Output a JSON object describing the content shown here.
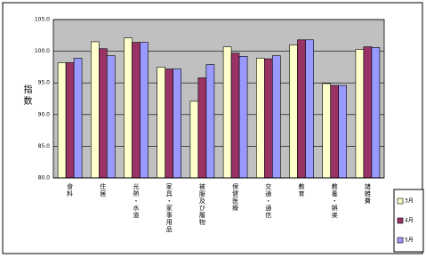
{
  "chart_data": {
    "type": "bar",
    "y_label": "指数",
    "categories": [
      "食料",
      "住居",
      "光熱・水道",
      "家具・家事用品",
      "被服及び履物",
      "保健医療",
      "交通・通信",
      "教育",
      "教養・娯楽",
      "諸雑費"
    ],
    "series": [
      {
        "name": "3月",
        "color": "#ffffcc",
        "values": [
          98.2,
          101.5,
          102.1,
          97.5,
          92.1,
          100.7,
          98.9,
          101.0,
          94.9,
          100.3
        ]
      },
      {
        "name": "4月",
        "color": "#993366",
        "values": [
          98.2,
          100.4,
          101.4,
          97.2,
          95.8,
          99.7,
          98.8,
          101.8,
          94.6,
          100.7
        ]
      },
      {
        "name": "5月",
        "color": "#9999ff",
        "values": [
          98.9,
          99.3,
          101.4,
          97.2,
          97.9,
          99.2,
          99.3,
          101.8,
          94.6,
          100.6
        ]
      }
    ],
    "ylim": [
      80,
      105
    ],
    "yticks": [
      {
        "value": 80,
        "label": "80.0"
      },
      {
        "value": 85,
        "label": "85.0"
      },
      {
        "value": 90,
        "label": "90.0"
      },
      {
        "value": 95,
        "label": "95.0"
      },
      {
        "value": 100,
        "label": "100.0"
      },
      {
        "value": 105,
        "label": "105.0"
      }
    ],
    "grid": true,
    "plot_background": "#c0c0c0"
  }
}
